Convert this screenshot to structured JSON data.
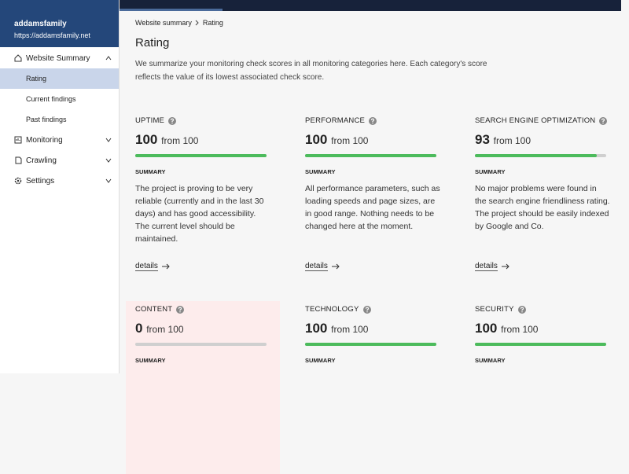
{
  "sidebar": {
    "project_name": "addamsfamily",
    "project_url": "https://addamsfamily.net",
    "nav": [
      {
        "label": "Website Summary",
        "children": [
          "Rating",
          "Current findings",
          "Past findings"
        ]
      },
      {
        "label": "Monitoring"
      },
      {
        "label": "Crawling"
      },
      {
        "label": "Settings"
      }
    ]
  },
  "breadcrumb": [
    "Website summary",
    "Rating"
  ],
  "title": "Rating",
  "intro": "We summarize your monitoring check scores in all monitoring categories here. Each category's score reflects the value of its lowest associated check score.",
  "cards": [
    {
      "name": "UPTIME",
      "score": 100,
      "out_of": {
        "value": 100,
        "label": "from 100"
      },
      "summary_label": "SUMMARY",
      "summary": "The project is proving to be very reliable (currently and in the last 30 days) and has good accessibility. The current level should be maintained.",
      "details": "details"
    },
    {
      "name": "PERFORMANCE",
      "score": 100,
      "out_of": {
        "value": 100,
        "label": "from 100"
      },
      "summary_label": "SUMMARY",
      "summary": "All performance parameters, such as loading speeds and page sizes, are in good range. Nothing needs to be changed here at the moment.",
      "details": "details"
    },
    {
      "name": "SEARCH ENGINE OPTIMIZATION",
      "score": 93,
      "out_of": {
        "value": 100,
        "label": "from 100"
      },
      "summary_label": "SUMMARY",
      "summary": "No major problems were found in the search engine friendliness rating. The project should be easily indexed by Google and Co.",
      "details": "details"
    },
    {
      "name": "CONTENT",
      "score": 0,
      "out_of": {
        "value": 100,
        "label": "from 100"
      },
      "summary_label": "SUMMARY"
    },
    {
      "name": "TECHNOLOGY",
      "score": 100,
      "out_of": {
        "value": 100,
        "label": "from 100"
      },
      "summary_label": "SUMMARY"
    },
    {
      "name": "SECURITY",
      "score": 100,
      "out_of": {
        "value": 100,
        "label": "from 100"
      },
      "summary_label": "SUMMARY"
    }
  ]
}
